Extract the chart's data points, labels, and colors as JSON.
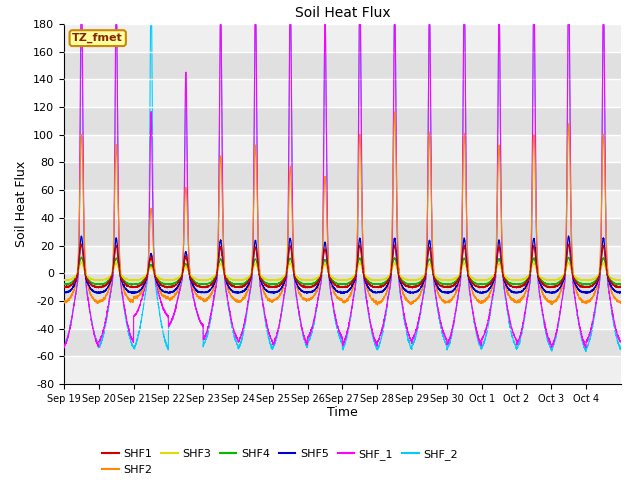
{
  "title": "Soil Heat Flux",
  "ylabel": "Soil Heat Flux",
  "xlabel": "Time",
  "annotation": "TZ_fmet",
  "ylim": [
    -80,
    180
  ],
  "background_color": "#ffffff",
  "plot_bg_color": "#e0e0e0",
  "series_colors": {
    "SHF1": "#cc0000",
    "SHF2": "#ff8800",
    "SHF3": "#dddd00",
    "SHF4": "#00bb00",
    "SHF5": "#0000cc",
    "SHF_1": "#ff00ff",
    "SHF_2": "#00ccff"
  },
  "xtick_labels": [
    "Sep 19",
    "Sep 20",
    "Sep 21",
    "Sep 22",
    "Sep 23",
    "Sep 24",
    "Sep 25",
    "Sep 26",
    "Sep 27",
    "Sep 28",
    "Sep 29",
    "Sep 30",
    "Oct 1",
    "Oct 2",
    "Oct 3",
    "Oct 4"
  ],
  "ytick_values": [
    -80,
    -60,
    -40,
    -20,
    0,
    20,
    40,
    60,
    80,
    100,
    120,
    140,
    160,
    180
  ],
  "n_days": 16,
  "pts_per_day": 288
}
